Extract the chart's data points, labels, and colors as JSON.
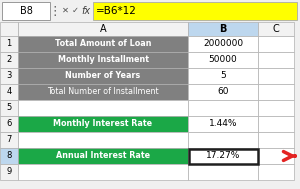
{
  "formula_bar_cell": "B8",
  "formula_bar_formula": "=B6*12",
  "rows": [
    {
      "row": "1",
      "label": "Total Amount of Loan",
      "value": "2000000",
      "label_bg": "#808080",
      "value_bg": "#ffffff",
      "label_color": "#ffffff",
      "value_color": "#000000",
      "bold_label": true
    },
    {
      "row": "2",
      "label": "Monthly Installment",
      "value": "50000",
      "label_bg": "#808080",
      "value_bg": "#ffffff",
      "label_color": "#ffffff",
      "value_color": "#000000",
      "bold_label": true
    },
    {
      "row": "3",
      "label": "Number of Years",
      "value": "5",
      "label_bg": "#808080",
      "value_bg": "#ffffff",
      "label_color": "#ffffff",
      "value_color": "#000000",
      "bold_label": true
    },
    {
      "row": "4",
      "label": "Total Number of Installment",
      "value": "60",
      "label_bg": "#808080",
      "value_bg": "#ffffff",
      "label_color": "#ffffff",
      "value_color": "#000000",
      "bold_label": false
    },
    {
      "row": "5",
      "label": "",
      "value": "",
      "label_bg": "#ffffff",
      "value_bg": "#ffffff",
      "label_color": "#000000",
      "value_color": "#000000",
      "bold_label": false
    },
    {
      "row": "6",
      "label": "Monthly Interest Rate",
      "value": "1.44%",
      "label_bg": "#1ba847",
      "value_bg": "#ffffff",
      "label_color": "#ffffff",
      "value_color": "#000000",
      "bold_label": true
    },
    {
      "row": "7",
      "label": "",
      "value": "",
      "label_bg": "#ffffff",
      "value_bg": "#ffffff",
      "label_color": "#000000",
      "value_color": "#000000",
      "bold_label": false
    },
    {
      "row": "8",
      "label": "Annual Interest Rate",
      "value": "17.27%",
      "label_bg": "#1ba847",
      "value_bg": "#ffffff",
      "label_color": "#ffffff",
      "value_color": "#000000",
      "bold_label": true
    }
  ],
  "selected_cell_row": "8",
  "arrow_color": "#e32322",
  "bg_color": "#f0f0f0",
  "grid_color": "#b0b0b0",
  "header_bg": "#f2f2f2",
  "formula_bg": "#ffff00",
  "col_b_header_bg": "#bdd7ee",
  "selected_row_header_bg": "#bdd7ee"
}
